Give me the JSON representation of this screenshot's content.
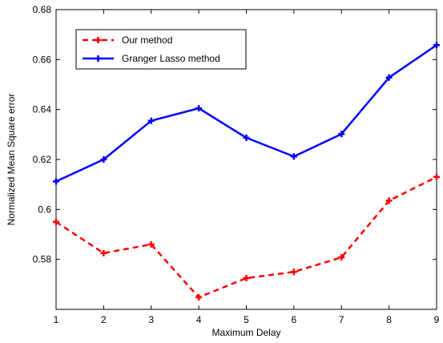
{
  "chart_data": {
    "type": "line",
    "xlabel": "Maximum Delay",
    "ylabel": "Normalized Mean Square error",
    "xlim": [
      1,
      9
    ],
    "ylim": [
      0.56,
      0.68
    ],
    "xticks": [
      "1",
      "2",
      "3",
      "4",
      "5",
      "6",
      "7",
      "8",
      "9"
    ],
    "yticks": [
      "0.58",
      "0.6",
      "0.62",
      "0.64",
      "0.66",
      "0.68"
    ],
    "grid": false,
    "legend_position": "top-left",
    "x": [
      1,
      2,
      3,
      4,
      5,
      6,
      7,
      8,
      9
    ],
    "series": [
      {
        "name": "Our method",
        "color": "#ff0000",
        "line_style": "dashed",
        "marker": "plus",
        "values": [
          0.595,
          0.5825,
          0.586,
          0.5648,
          0.5725,
          0.575,
          0.5808,
          0.6035,
          0.613
        ]
      },
      {
        "name": "Granger Lasso method",
        "color": "#0000ff",
        "line_style": "solid",
        "marker": "plus",
        "values": [
          0.6112,
          0.62,
          0.6355,
          0.6405,
          0.6287,
          0.6212,
          0.6302,
          0.6528,
          0.6658
        ]
      }
    ]
  }
}
